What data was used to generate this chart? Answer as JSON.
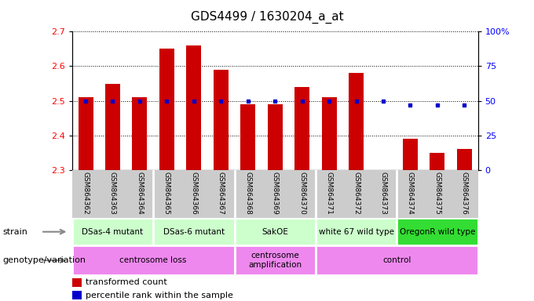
{
  "title": "GDS4499 / 1630204_a_at",
  "samples": [
    "GSM864362",
    "GSM864363",
    "GSM864364",
    "GSM864365",
    "GSM864366",
    "GSM864367",
    "GSM864368",
    "GSM864369",
    "GSM864370",
    "GSM864371",
    "GSM864372",
    "GSM864373",
    "GSM864374",
    "GSM864375",
    "GSM864376"
  ],
  "red_values": [
    2.51,
    2.55,
    2.51,
    2.65,
    2.66,
    2.59,
    2.49,
    2.49,
    2.54,
    2.51,
    2.58,
    2.3,
    2.39,
    2.35,
    2.36
  ],
  "blue_values": [
    50,
    50,
    50,
    50,
    50,
    50,
    50,
    50,
    50,
    50,
    50,
    50,
    47,
    47,
    47
  ],
  "ylim": [
    2.3,
    2.7
  ],
  "y2lim": [
    0,
    100
  ],
  "y_ticks": [
    2.3,
    2.4,
    2.5,
    2.6,
    2.7
  ],
  "y2_ticks": [
    0,
    25,
    50,
    75,
    100
  ],
  "strain_groups": [
    {
      "label": "DSas-4 mutant",
      "start": 0,
      "end": 3,
      "color": "#ccffcc"
    },
    {
      "label": "DSas-6 mutant",
      "start": 3,
      "end": 6,
      "color": "#ccffcc"
    },
    {
      "label": "SakOE",
      "start": 6,
      "end": 9,
      "color": "#ccffcc"
    },
    {
      "label": "white 67 wild type",
      "start": 9,
      "end": 12,
      "color": "#ccffcc"
    },
    {
      "label": "OregonR wild type",
      "start": 12,
      "end": 15,
      "color": "#33dd33"
    }
  ],
  "genotype_groups": [
    {
      "label": "centrosome loss",
      "start": 0,
      "end": 6
    },
    {
      "label": "centrosome\namplification",
      "start": 6,
      "end": 9
    },
    {
      "label": "control",
      "start": 9,
      "end": 15
    }
  ],
  "genotype_color": "#ee88ee",
  "bar_color": "#cc0000",
  "dot_color": "#0000cc",
  "baseline": 2.3,
  "bar_width": 0.55,
  "sample_bg_color": "#cccccc",
  "group_dividers": [
    2.5,
    5.5,
    8.5,
    11.5
  ]
}
